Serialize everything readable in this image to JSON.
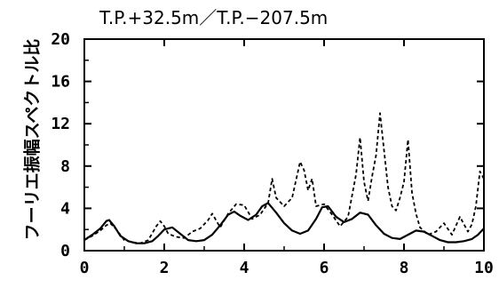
{
  "chart_data": {
    "type": "line",
    "title": "T.P.+32.5m／T.P.−207.5m",
    "ylabel": "フーリエ振幅スペクトル比",
    "xlabel": "",
    "xlim": [
      0,
      10
    ],
    "ylim": [
      0,
      20
    ],
    "x_ticks": [
      "0",
      "2",
      "4",
      "6",
      "8",
      "10"
    ],
    "y_ticks": [
      "0",
      "4",
      "8",
      "12",
      "16",
      "20"
    ],
    "grid": false,
    "series": [
      {
        "style": "solid",
        "color": "#000000",
        "x": [
          0,
          0.2,
          0.4,
          0.55,
          0.62,
          0.75,
          0.9,
          1.1,
          1.3,
          1.5,
          1.7,
          1.85,
          2.0,
          2.2,
          2.4,
          2.6,
          2.8,
          3.0,
          3.2,
          3.4,
          3.6,
          3.75,
          3.9,
          4.1,
          4.3,
          4.45,
          4.6,
          4.8,
          5.0,
          5.2,
          5.4,
          5.6,
          5.8,
          5.95,
          6.1,
          6.3,
          6.5,
          6.7,
          6.9,
          7.1,
          7.3,
          7.5,
          7.7,
          7.9,
          8.1,
          8.3,
          8.5,
          8.7,
          8.9,
          9.1,
          9.3,
          9.5,
          9.7,
          9.85,
          10.0
        ],
        "y": [
          1.0,
          1.5,
          2.1,
          2.8,
          2.9,
          2.3,
          1.4,
          0.9,
          0.7,
          0.7,
          0.9,
          1.4,
          2.0,
          2.2,
          1.6,
          1.0,
          0.9,
          1.0,
          1.5,
          2.4,
          3.4,
          3.7,
          3.3,
          2.9,
          3.4,
          4.2,
          4.5,
          3.6,
          2.6,
          1.9,
          1.6,
          1.9,
          3.0,
          4.1,
          4.2,
          3.2,
          2.7,
          3.0,
          3.6,
          3.4,
          2.4,
          1.6,
          1.2,
          1.1,
          1.5,
          1.9,
          1.8,
          1.4,
          1.0,
          0.8,
          0.8,
          0.9,
          1.1,
          1.5,
          2.1
        ]
      },
      {
        "style": "dashed",
        "color": "#000000",
        "x": [
          0,
          0.2,
          0.4,
          0.55,
          0.65,
          0.8,
          1.0,
          1.2,
          1.4,
          1.6,
          1.8,
          1.9,
          2.0,
          2.1,
          2.3,
          2.5,
          2.7,
          2.9,
          3.1,
          3.2,
          3.4,
          3.6,
          3.8,
          4.0,
          4.2,
          4.4,
          4.6,
          4.7,
          4.8,
          5.0,
          5.2,
          5.4,
          5.5,
          5.6,
          5.7,
          5.8,
          6.0,
          6.2,
          6.4,
          6.6,
          6.8,
          6.9,
          7.0,
          7.1,
          7.2,
          7.3,
          7.4,
          7.5,
          7.6,
          7.7,
          7.8,
          7.9,
          8.0,
          8.1,
          8.2,
          8.3,
          8.4,
          8.6,
          8.8,
          9.0,
          9.2,
          9.4,
          9.6,
          9.7,
          9.8,
          9.9,
          10.0
        ],
        "y": [
          1.0,
          1.4,
          1.9,
          2.4,
          2.6,
          2.0,
          1.0,
          0.8,
          0.7,
          1.0,
          2.3,
          2.8,
          2.3,
          1.6,
          1.3,
          1.2,
          1.8,
          2.1,
          2.9,
          3.5,
          2.2,
          3.5,
          4.4,
          4.3,
          3.0,
          3.4,
          4.5,
          6.8,
          5.0,
          4.2,
          5.0,
          8.4,
          7.6,
          5.7,
          6.8,
          4.2,
          4.4,
          3.4,
          2.3,
          3.2,
          7.2,
          10.7,
          6.5,
          4.7,
          7.0,
          9.0,
          13.0,
          9.5,
          6.0,
          4.2,
          3.8,
          5.0,
          6.5,
          10.5,
          5.5,
          3.5,
          2.2,
          1.5,
          1.8,
          2.6,
          1.5,
          3.2,
          1.8,
          2.5,
          4.2,
          7.5,
          6.8
        ]
      }
    ]
  }
}
